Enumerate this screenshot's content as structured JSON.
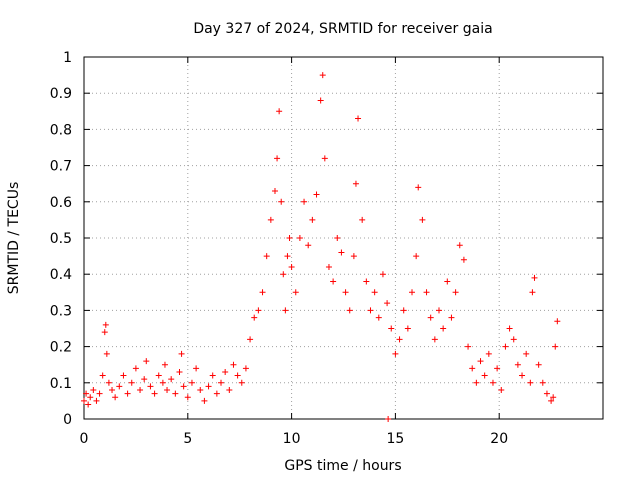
{
  "chart_data": {
    "type": "scatter",
    "title": "Day 327 of 2024, SRMTID for receiver gaia",
    "xlabel": "GPS time / hours",
    "ylabel": "SRMTID / TECUs",
    "xlim": [
      0,
      25
    ],
    "ylim": [
      0,
      1
    ],
    "xticks": [
      0,
      5,
      10,
      15,
      20
    ],
    "xtick_labels": [
      "0",
      "5",
      "10",
      "15",
      "20"
    ],
    "yticks": [
      0,
      0.1,
      0.2,
      0.3,
      0.4,
      0.5,
      0.6,
      0.7,
      0.8,
      0.9,
      1
    ],
    "ytick_labels": [
      "0",
      "0.1",
      "0.2",
      "0.3",
      "0.4",
      "0.5",
      "0.6",
      "0.7",
      "0.8",
      "0.9",
      "1"
    ],
    "grid": true,
    "marker": "+",
    "series": [
      {
        "name": "SRMTID",
        "color": "#ff0000",
        "x": [
          0.0,
          0.1,
          0.2,
          0.3,
          0.45,
          0.6,
          0.75,
          0.9,
          1.0,
          1.05,
          1.1,
          1.2,
          1.35,
          1.5,
          1.7,
          1.9,
          2.1,
          2.3,
          2.5,
          2.7,
          2.9,
          3.0,
          3.2,
          3.4,
          3.6,
          3.8,
          3.9,
          4.0,
          4.2,
          4.4,
          4.6,
          4.7,
          4.8,
          5.0,
          5.2,
          5.4,
          5.6,
          5.8,
          6.0,
          6.2,
          6.4,
          6.6,
          6.8,
          7.0,
          7.2,
          7.4,
          7.6,
          7.8,
          8.0,
          8.2,
          8.4,
          8.6,
          8.8,
          9.0,
          9.2,
          9.3,
          9.4,
          9.5,
          9.6,
          9.7,
          9.8,
          9.9,
          10.0,
          10.2,
          10.4,
          10.6,
          10.8,
          11.0,
          11.2,
          11.4,
          11.5,
          11.6,
          11.8,
          12.0,
          12.2,
          12.4,
          12.6,
          12.8,
          13.0,
          13.1,
          13.2,
          13.4,
          13.6,
          13.8,
          14.0,
          14.2,
          14.4,
          14.6,
          14.65,
          14.8,
          15.0,
          15.2,
          15.4,
          15.6,
          15.8,
          16.0,
          16.1,
          16.3,
          16.5,
          16.7,
          16.9,
          17.1,
          17.3,
          17.5,
          17.7,
          17.9,
          18.1,
          18.3,
          18.5,
          18.7,
          18.9,
          19.1,
          19.3,
          19.5,
          19.7,
          19.9,
          20.1,
          20.3,
          20.5,
          20.7,
          20.9,
          21.1,
          21.3,
          21.5,
          21.6,
          21.7,
          21.9,
          22.1,
          22.3,
          22.5,
          22.6,
          22.7,
          22.8
        ],
        "y": [
          0.05,
          0.07,
          0.04,
          0.06,
          0.08,
          0.05,
          0.07,
          0.12,
          0.24,
          0.26,
          0.18,
          0.1,
          0.08,
          0.06,
          0.09,
          0.12,
          0.07,
          0.1,
          0.14,
          0.08,
          0.11,
          0.16,
          0.09,
          0.07,
          0.12,
          0.1,
          0.15,
          0.08,
          0.11,
          0.07,
          0.13,
          0.18,
          0.09,
          0.06,
          0.1,
          0.14,
          0.08,
          0.05,
          0.09,
          0.12,
          0.07,
          0.1,
          0.13,
          0.08,
          0.15,
          0.12,
          0.1,
          0.14,
          0.22,
          0.28,
          0.3,
          0.35,
          0.45,
          0.55,
          0.63,
          0.72,
          0.85,
          0.6,
          0.4,
          0.3,
          0.45,
          0.5,
          0.42,
          0.35,
          0.5,
          0.6,
          0.48,
          0.55,
          0.62,
          0.88,
          0.95,
          0.72,
          0.42,
          0.38,
          0.5,
          0.46,
          0.35,
          0.3,
          0.45,
          0.65,
          0.83,
          0.55,
          0.38,
          0.3,
          0.35,
          0.28,
          0.4,
          0.32,
          0.0,
          0.25,
          0.18,
          0.22,
          0.3,
          0.25,
          0.35,
          0.45,
          0.64,
          0.55,
          0.35,
          0.28,
          0.22,
          0.3,
          0.25,
          0.38,
          0.28,
          0.35,
          0.48,
          0.44,
          0.2,
          0.14,
          0.1,
          0.16,
          0.12,
          0.18,
          0.1,
          0.14,
          0.08,
          0.2,
          0.25,
          0.22,
          0.15,
          0.12,
          0.18,
          0.1,
          0.35,
          0.39,
          0.15,
          0.1,
          0.07,
          0.05,
          0.06,
          0.2,
          0.27
        ]
      }
    ]
  }
}
